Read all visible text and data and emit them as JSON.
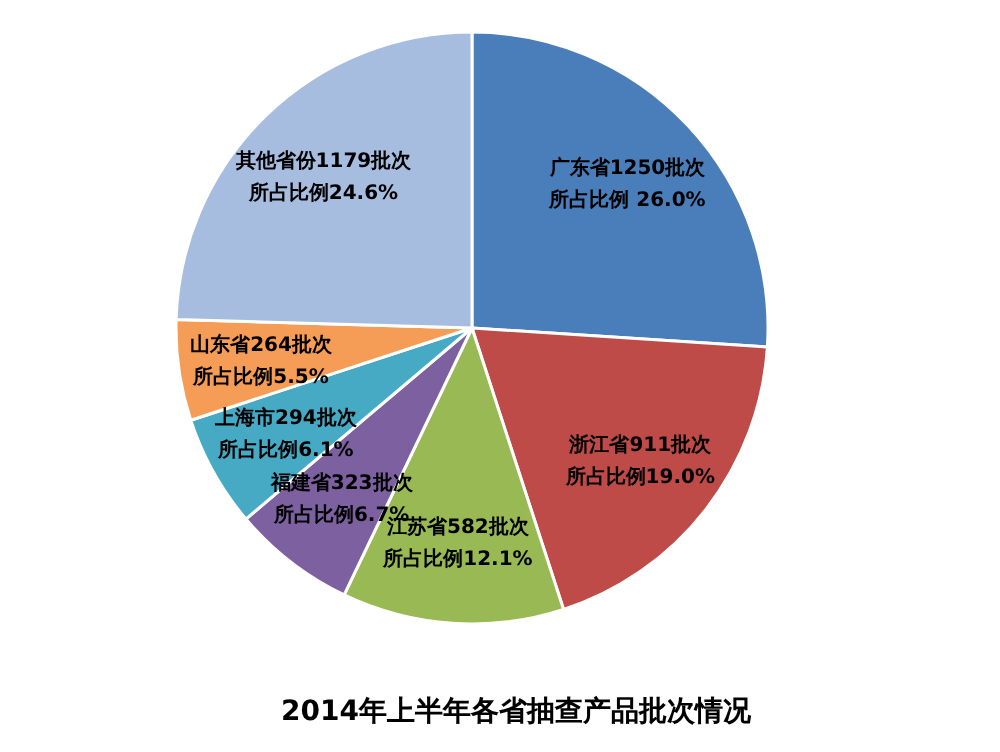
{
  "chart_data": {
    "type": "pie",
    "title": "2014年上半年各省抽查产品批次情况",
    "categories": [
      "广东省1250批次",
      "浙江省911批次",
      "江苏省582批次",
      "福建省323批次",
      "上海市294批次",
      "山东省264批次",
      "其他省份1179批次"
    ],
    "values": [
      1250,
      911,
      582,
      323,
      294,
      264,
      1179
    ],
    "value_labels": [
      "所占比例 26.0%",
      "所占比例19.0%",
      "所占比例12.1%",
      "所占比例6.7%",
      "所占比例6.1%",
      "所占比例5.5%",
      "所占比例24.6%"
    ],
    "colors": [
      "#4a7ebb",
      "#be4b48",
      "#98b954",
      "#7d60a0",
      "#46aac5",
      "#f59d56",
      "#a7bde0"
    ]
  }
}
